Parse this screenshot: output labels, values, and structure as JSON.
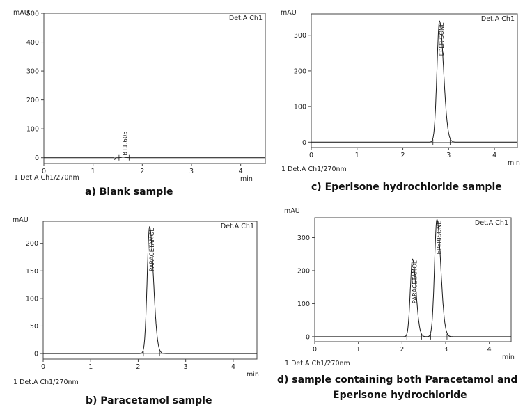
{
  "chart_data": [
    {
      "id": "a",
      "type": "line",
      "caption": "a) Blank sample",
      "ylabel": "mAU",
      "xlabel": "min",
      "detector": "Det.A Ch1",
      "footer": "1   Det.A Ch1/270nm",
      "xlim": [
        0,
        4.5
      ],
      "ylim": [
        -20,
        500
      ],
      "xticks": [
        0,
        1,
        2,
        3,
        4
      ],
      "yticks": [
        0,
        100,
        200,
        300,
        400,
        500
      ],
      "series": [
        {
          "peaks": [
            {
              "label": "BT1.605",
              "t": 1.605,
              "height": 3,
              "width": 0.03
            }
          ]
        }
      ]
    },
    {
      "id": "c",
      "type": "line",
      "caption": "c) Eperisone hydrochloride sample",
      "ylabel": "mAU",
      "xlabel": "min",
      "detector": "Det.A Ch1",
      "footer": "1   Det.A Ch1/270nm",
      "xlim": [
        0,
        4.5
      ],
      "ylim": [
        -15,
        360
      ],
      "xticks": [
        0,
        1,
        2,
        3,
        4
      ],
      "yticks": [
        0,
        100,
        200,
        300
      ],
      "series": [
        {
          "peaks": [
            {
              "label": "EPERISONE",
              "t": 2.8,
              "height": 340,
              "width": 0.055
            }
          ]
        }
      ]
    },
    {
      "id": "b",
      "type": "line",
      "caption": "b) Paracetamol sample",
      "ylabel": "mAU",
      "xlabel": "min",
      "detector": "Det.A Ch1",
      "footer": "1   Det.A Ch1/270nm",
      "xlim": [
        0,
        4.5
      ],
      "ylim": [
        -10,
        240
      ],
      "xticks": [
        0,
        1,
        2,
        3,
        4
      ],
      "yticks": [
        0,
        50,
        100,
        150,
        200
      ],
      "series": [
        {
          "peaks": [
            {
              "label": "PARACETAMOL",
              "t": 2.24,
              "height": 230,
              "width": 0.05
            }
          ]
        }
      ]
    },
    {
      "id": "d",
      "type": "line",
      "caption": "d) sample containing both Paracetamol and Eperisone hydrochloride",
      "caption_lines": [
        "d) sample containing both Paracetamol and",
        "Eperisone hydrochloride"
      ],
      "ylabel": "mAU",
      "xlabel": "min",
      "detector": "Det.A Ch1",
      "footer": "1   Det.A Ch1/270nm",
      "xlim": [
        0,
        4.5
      ],
      "ylim": [
        -15,
        360
      ],
      "xticks": [
        0,
        1,
        2,
        3,
        4
      ],
      "yticks": [
        0,
        100,
        200,
        300
      ],
      "series": [
        {
          "peaks": [
            {
              "label": "PARACETAMOL",
              "t": 2.24,
              "height": 235,
              "width": 0.05
            },
            {
              "label": "EPERISONE",
              "t": 2.8,
              "height": 355,
              "width": 0.055
            }
          ]
        }
      ]
    }
  ]
}
